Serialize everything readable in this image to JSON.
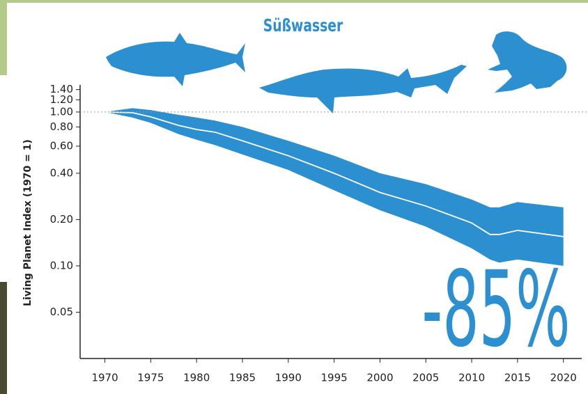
{
  "chart_data": {
    "type": "line",
    "title": "Süßwasser",
    "y_label": "Living Planet Index (1970 = 1)",
    "annotation": "-85%",
    "x": [
      1970,
      1973,
      1975,
      1978,
      1980,
      1982,
      1985,
      1990,
      1995,
      2000,
      2005,
      2010,
      2012,
      2013,
      2015,
      2020
    ],
    "values": [
      1.0,
      0.99,
      0.93,
      0.82,
      0.77,
      0.74,
      0.65,
      0.52,
      0.4,
      0.3,
      0.245,
      0.19,
      0.16,
      0.16,
      0.17,
      0.155
    ],
    "upper": [
      1.0,
      1.06,
      1.03,
      0.96,
      0.92,
      0.88,
      0.8,
      0.65,
      0.52,
      0.4,
      0.34,
      0.27,
      0.24,
      0.24,
      0.26,
      0.24
    ],
    "lower": [
      1.0,
      0.92,
      0.85,
      0.72,
      0.66,
      0.61,
      0.53,
      0.42,
      0.31,
      0.23,
      0.18,
      0.13,
      0.11,
      0.105,
      0.11,
      0.1
    ],
    "color": "#2b8fd0",
    "line_color": "#ffffff",
    "log_y": true,
    "baseline": 1,
    "xlim": [
      1967.3,
      2022
    ],
    "xticks": [
      1970,
      1975,
      1980,
      1985,
      1990,
      1995,
      2000,
      2005,
      2010,
      2015,
      2020
    ],
    "ylim": [
      0.025,
      1.5
    ],
    "yticks": [
      0.05,
      {
        "value": 0.1,
        "label": "0.10"
      },
      {
        "value": 0.2,
        "label": "0.20"
      },
      {
        "value": 0.4,
        "label": "0.40"
      },
      {
        "value": 0.6,
        "label": "0.60"
      },
      {
        "value": 0.8,
        "label": "0.80"
      },
      {
        "value": 1,
        "label": "1.00"
      },
      {
        "value": 1.2,
        "label": "1.20"
      },
      {
        "value": 1.4,
        "label": "1.40"
      }
    ]
  }
}
